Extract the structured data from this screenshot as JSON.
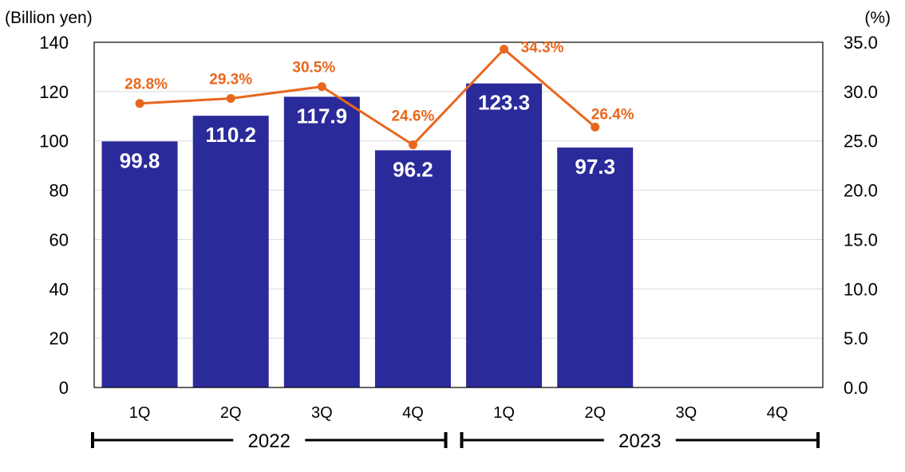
{
  "chart_data": {
    "type": "bar",
    "categories": [
      "1Q",
      "2Q",
      "3Q",
      "4Q",
      "1Q",
      "2Q",
      "3Q",
      "4Q"
    ],
    "groups": [
      {
        "label": "2022",
        "from": 0,
        "to": 3
      },
      {
        "label": "2023",
        "from": 4,
        "to": 7
      }
    ],
    "series": [
      {
        "type": "bar",
        "axis": "left",
        "values": [
          99.8,
          110.2,
          117.9,
          96.2,
          123.3,
          97.3,
          null,
          null
        ],
        "labels": [
          "99.8",
          "110.2",
          "117.9",
          "96.2",
          "123.3",
          "97.3",
          "",
          ""
        ]
      },
      {
        "type": "line",
        "axis": "right",
        "values": [
          28.8,
          29.3,
          30.5,
          24.6,
          34.3,
          26.4,
          null,
          null
        ],
        "labels": [
          "28.8%",
          "29.3%",
          "30.5%",
          "24.6%",
          "34.3%",
          "26.4%",
          "",
          ""
        ]
      }
    ],
    "y_left": {
      "unit_label": "(Billion yen)",
      "range": [
        0,
        140
      ],
      "ticks": [
        0,
        20,
        40,
        60,
        80,
        100,
        120,
        140
      ],
      "tick_labels": [
        "0",
        "20",
        "40",
        "60",
        "80",
        "100",
        "120",
        "140"
      ]
    },
    "y_right": {
      "unit_label": "(%)",
      "range": [
        0,
        35
      ],
      "ticks": [
        0,
        5,
        10,
        15,
        20,
        25,
        30,
        35
      ],
      "tick_labels": [
        "0.0",
        "5.0",
        "10.0",
        "15.0",
        "20.0",
        "25.0",
        "30.0",
        "35.0"
      ]
    },
    "grid": true,
    "colors": {
      "bar": "#2b2a9b",
      "line": "#e8671e",
      "grid": "#d9d9d9",
      "axis": "#000000"
    }
  }
}
